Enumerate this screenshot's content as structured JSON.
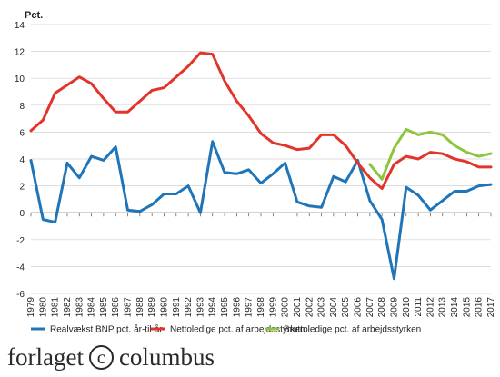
{
  "chart_data": {
    "type": "line",
    "ylabel": "Pct.",
    "ylim": [
      -6,
      14
    ],
    "yticks": [
      14,
      12,
      10,
      8,
      6,
      4,
      2,
      0,
      -2,
      -4,
      -6
    ],
    "x": [
      1979,
      1980,
      1981,
      1982,
      1983,
      1984,
      1985,
      1986,
      1987,
      1988,
      1989,
      1990,
      1991,
      1992,
      1993,
      1994,
      1995,
      1996,
      1997,
      1998,
      1999,
      2000,
      2001,
      2002,
      2003,
      2004,
      2005,
      2006,
      2007,
      2008,
      2009,
      2010,
      2011,
      2012,
      2013,
      2014,
      2015,
      2016,
      2017
    ],
    "grid": "horizontal",
    "legend": "bottom",
    "series": [
      {
        "name": "Realvækst BNP pct. år-til-år",
        "color": "#1f75b8",
        "values": [
          3.9,
          -0.5,
          -0.7,
          3.7,
          2.6,
          4.2,
          3.9,
          4.9,
          0.2,
          0.1,
          0.6,
          1.4,
          1.4,
          2.0,
          0.0,
          5.3,
          3.0,
          2.9,
          3.2,
          2.2,
          2.9,
          3.7,
          0.8,
          0.5,
          0.4,
          2.7,
          2.3,
          3.9,
          0.9,
          -0.5,
          -4.9,
          1.9,
          1.3,
          0.2,
          0.9,
          1.6,
          1.6,
          2.0,
          2.1
        ]
      },
      {
        "name": "Nettoledige pct. af arbejdsstyrken",
        "color": "#e2342a",
        "values": [
          6.1,
          6.9,
          8.9,
          9.5,
          10.1,
          9.6,
          8.5,
          7.5,
          7.5,
          8.3,
          9.1,
          9.3,
          10.1,
          10.9,
          11.9,
          11.8,
          9.8,
          8.3,
          7.2,
          5.9,
          5.2,
          5.0,
          4.7,
          4.8,
          5.8,
          5.8,
          5.0,
          3.7,
          2.6,
          1.8,
          3.6,
          4.2,
          4.0,
          4.5,
          4.4,
          4.0,
          3.8,
          3.4,
          3.4
        ]
      },
      {
        "name": "Bruttoledige pct. af arbejdsstyrken",
        "color": "#8cc63e",
        "values": [
          null,
          null,
          null,
          null,
          null,
          null,
          null,
          null,
          null,
          null,
          null,
          null,
          null,
          null,
          null,
          null,
          null,
          null,
          null,
          null,
          null,
          null,
          null,
          null,
          null,
          null,
          null,
          null,
          3.6,
          2.5,
          4.8,
          6.2,
          5.8,
          6.0,
          5.8,
          5.0,
          4.5,
          4.2,
          4.4
        ]
      }
    ]
  },
  "logo": {
    "text_left": "forlaget",
    "symbol": "c",
    "text_right": "columbus"
  }
}
